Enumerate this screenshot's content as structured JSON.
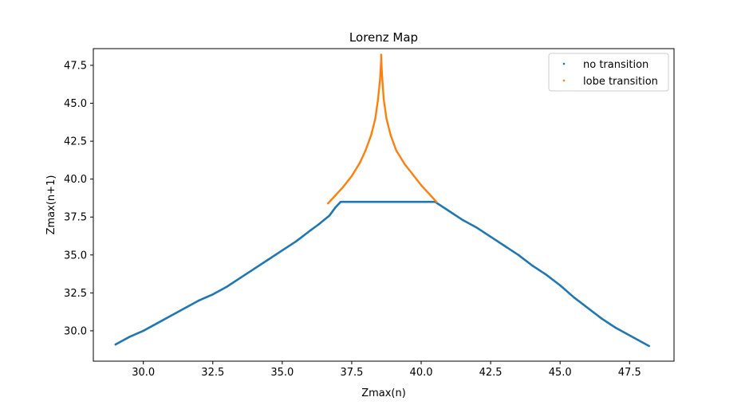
{
  "chart_data": {
    "type": "scatter",
    "title": "Lorenz Map",
    "xlabel": "Zmax(n)",
    "ylabel": "Zmax(n+1)",
    "xlim": [
      28.2,
      49.1
    ],
    "ylim": [
      28.0,
      48.6
    ],
    "xticks": [
      30.0,
      32.5,
      35.0,
      37.5,
      40.0,
      42.5,
      45.0,
      47.5
    ],
    "xtick_labels": [
      "30.0",
      "32.5",
      "35.0",
      "37.5",
      "40.0",
      "42.5",
      "45.0",
      "47.5"
    ],
    "yticks": [
      30.0,
      32.5,
      35.0,
      37.5,
      40.0,
      42.5,
      45.0,
      47.5
    ],
    "ytick_labels": [
      "30.0",
      "32.5",
      "35.0",
      "37.5",
      "40.0",
      "42.5",
      "45.0",
      "47.5"
    ],
    "grid": false,
    "legend_position": "top-right",
    "series": [
      {
        "name": "no transition",
        "color": "#1f77b4",
        "points": [
          [
            29.0,
            29.1
          ],
          [
            29.2,
            29.3
          ],
          [
            29.5,
            29.6
          ],
          [
            30.0,
            30.0
          ],
          [
            30.5,
            30.5
          ],
          [
            31.0,
            31.0
          ],
          [
            31.5,
            31.5
          ],
          [
            32.0,
            32.0
          ],
          [
            32.5,
            32.4
          ],
          [
            33.0,
            32.9
          ],
          [
            33.5,
            33.5
          ],
          [
            34.0,
            34.1
          ],
          [
            34.5,
            34.7
          ],
          [
            35.0,
            35.3
          ],
          [
            35.5,
            35.9
          ],
          [
            36.0,
            36.6
          ],
          [
            36.3,
            37.0
          ],
          [
            36.5,
            37.3
          ],
          [
            36.7,
            37.6
          ],
          [
            36.9,
            38.1
          ],
          [
            37.1,
            38.5
          ],
          [
            40.5,
            38.5
          ],
          [
            41.0,
            37.9
          ],
          [
            41.5,
            37.3
          ],
          [
            42.0,
            36.8
          ],
          [
            42.5,
            36.2
          ],
          [
            43.0,
            35.6
          ],
          [
            43.5,
            35.0
          ],
          [
            44.0,
            34.3
          ],
          [
            44.5,
            33.7
          ],
          [
            45.0,
            33.0
          ],
          [
            45.5,
            32.2
          ],
          [
            46.0,
            31.5
          ],
          [
            46.5,
            30.8
          ],
          [
            47.0,
            30.2
          ],
          [
            47.5,
            29.7
          ],
          [
            47.8,
            29.4
          ],
          [
            48.2,
            29.0
          ]
        ]
      },
      {
        "name": "lobe transition",
        "color": "#ff7f0e",
        "points": [
          [
            36.65,
            38.4
          ],
          [
            36.9,
            38.9
          ],
          [
            37.2,
            39.5
          ],
          [
            37.5,
            40.2
          ],
          [
            37.8,
            41.1
          ],
          [
            38.0,
            41.9
          ],
          [
            38.2,
            42.9
          ],
          [
            38.35,
            44.0
          ],
          [
            38.45,
            45.3
          ],
          [
            38.52,
            46.6
          ],
          [
            38.55,
            47.5
          ],
          [
            38.56,
            47.9
          ],
          [
            38.56,
            48.2
          ],
          [
            38.57,
            47.6
          ],
          [
            38.6,
            46.6
          ],
          [
            38.65,
            45.3
          ],
          [
            38.75,
            44.0
          ],
          [
            38.9,
            42.9
          ],
          [
            39.1,
            41.9
          ],
          [
            39.4,
            41.0
          ],
          [
            39.7,
            40.3
          ],
          [
            40.0,
            39.6
          ],
          [
            40.3,
            39.0
          ],
          [
            40.55,
            38.5
          ]
        ]
      }
    ]
  }
}
